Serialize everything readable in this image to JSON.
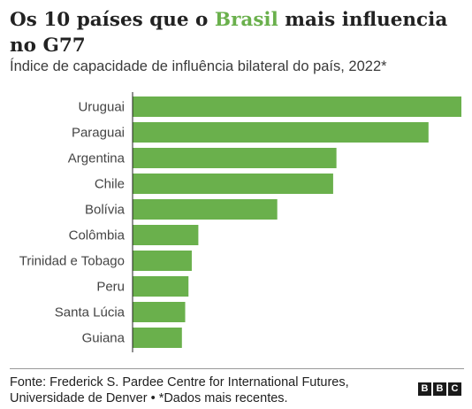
{
  "title_prefix": "Os 10 países que o ",
  "title_highlight": "Brasil",
  "title_suffix": " mais influencia no G77",
  "subtitle": "Índice de capacidade de influência bilateral do país, 2022*",
  "source_line1": "Fonte: Frederick S. Pardee Centre for International Futures,",
  "source_line2": "Universidade de Denver • *Dados mais recentes.",
  "logo": [
    "B",
    "B",
    "C"
  ],
  "colors": {
    "bar": "#6ab04c",
    "highlight": "#6ab04c",
    "axis": "#222222"
  },
  "chart_data": {
    "type": "bar",
    "orientation": "horizontal",
    "categories": [
      "Uruguai",
      "Paraguai",
      "Argentina",
      "Chile",
      "Bolívia",
      "Colômbia",
      "Trinidad e Tobago",
      "Peru",
      "Santa Lúcia",
      "Guiana"
    ],
    "values": [
      1.0,
      0.9,
      0.62,
      0.61,
      0.44,
      0.2,
      0.18,
      0.17,
      0.16,
      0.15
    ],
    "xlim": [
      0,
      1
    ],
    "grid": false,
    "legend": "none"
  }
}
